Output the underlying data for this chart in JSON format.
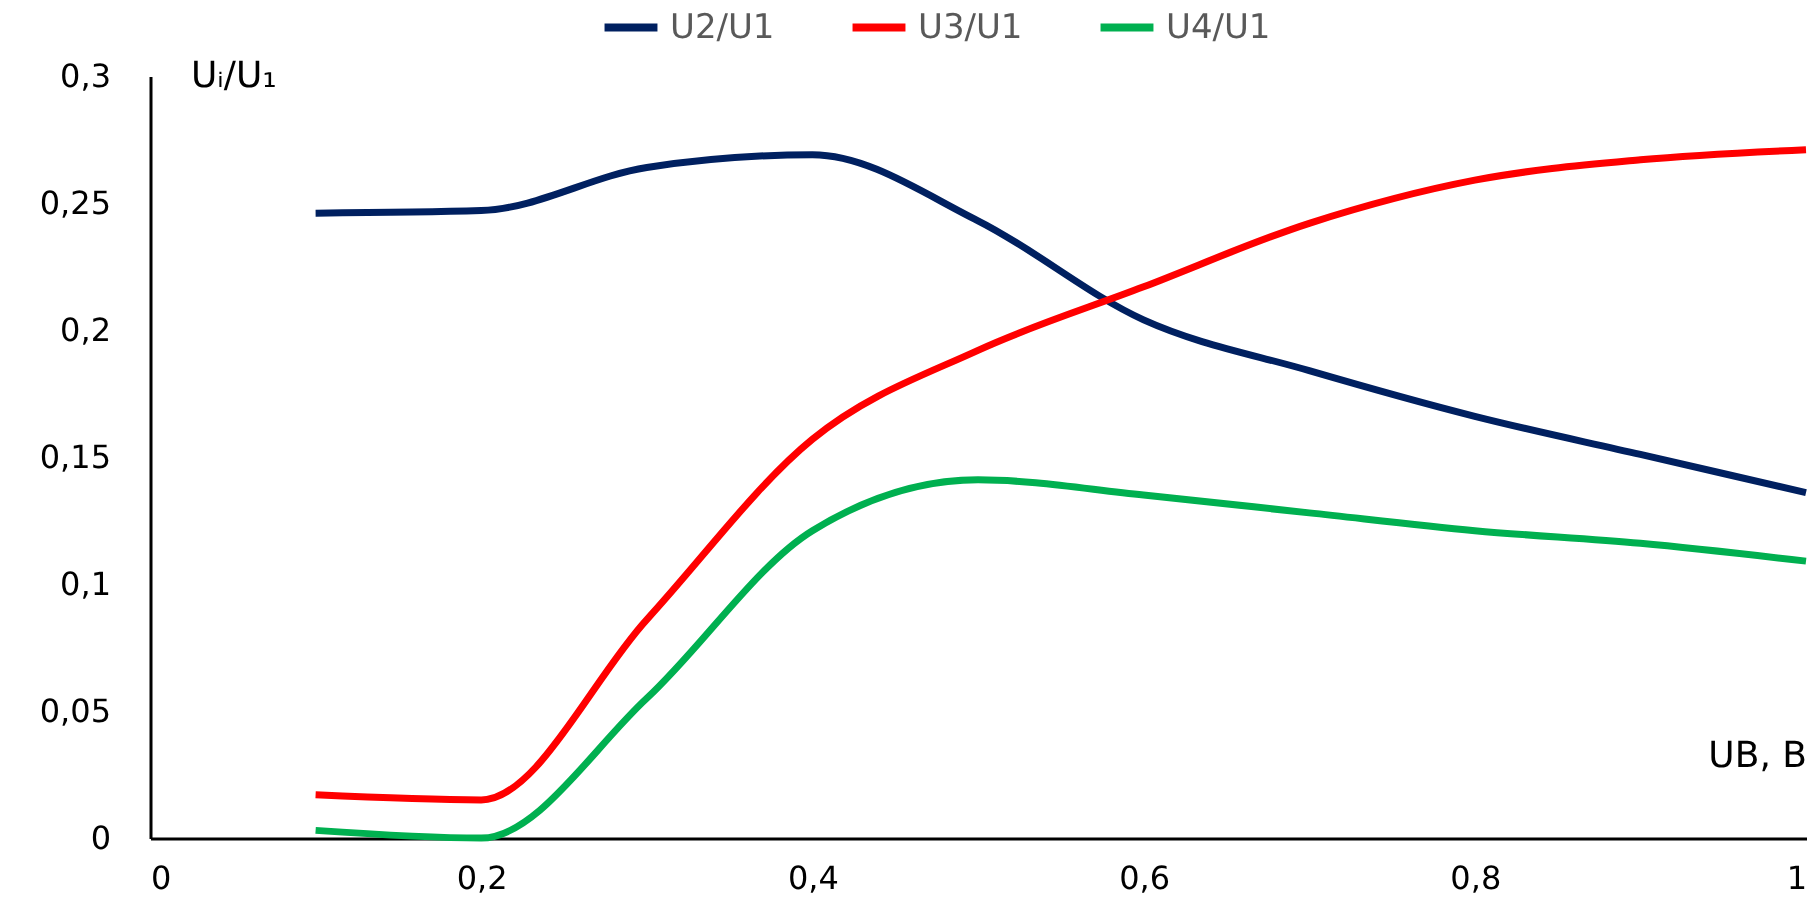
{
  "chart_data": {
    "type": "line",
    "xlabel": "UB, B",
    "ylabel": "Uᵢ/U₁",
    "x": [
      0.1,
      0.2,
      0.3,
      0.4,
      0.5,
      0.6,
      0.7,
      0.8,
      0.9,
      1.0
    ],
    "series": [
      {
        "name": "U2/U1",
        "color": "#002060",
        "values": [
          0.246,
          0.247,
          0.264,
          0.269,
          0.243,
          0.204,
          0.184,
          0.166,
          0.151,
          0.136
        ]
      },
      {
        "name": "U3/U1",
        "color": "#ff0000",
        "values": [
          0.017,
          0.015,
          0.086,
          0.157,
          0.192,
          0.217,
          0.242,
          0.259,
          0.267,
          0.271
        ]
      },
      {
        "name": "U4/U1",
        "color": "#00b050",
        "values": [
          0.003,
          0.0,
          0.055,
          0.121,
          0.141,
          0.135,
          0.128,
          0.121,
          0.116,
          0.109
        ]
      }
    ],
    "xlim": [
      0,
      1
    ],
    "ylim": [
      0,
      0.3
    ],
    "xticks": [
      0,
      {
        "value": 0.2,
        "label": "0,2"
      },
      {
        "value": 0.4,
        "label": "0,4"
      },
      {
        "value": 0.6,
        "label": "0,6"
      },
      {
        "value": 0.8,
        "label": "0,8"
      },
      1
    ],
    "yticks": [
      0,
      {
        "value": 0.05,
        "label": "0,05"
      },
      {
        "value": 0.1,
        "label": "0,1"
      },
      {
        "value": 0.15,
        "label": "0,15"
      },
      {
        "value": 0.2,
        "label": "0,2"
      },
      {
        "value": 0.25,
        "label": "0,25"
      },
      {
        "value": 0.3,
        "label": "0,3"
      }
    ],
    "grid": false,
    "legend": "top",
    "line_style": "solid",
    "marker": "none"
  }
}
